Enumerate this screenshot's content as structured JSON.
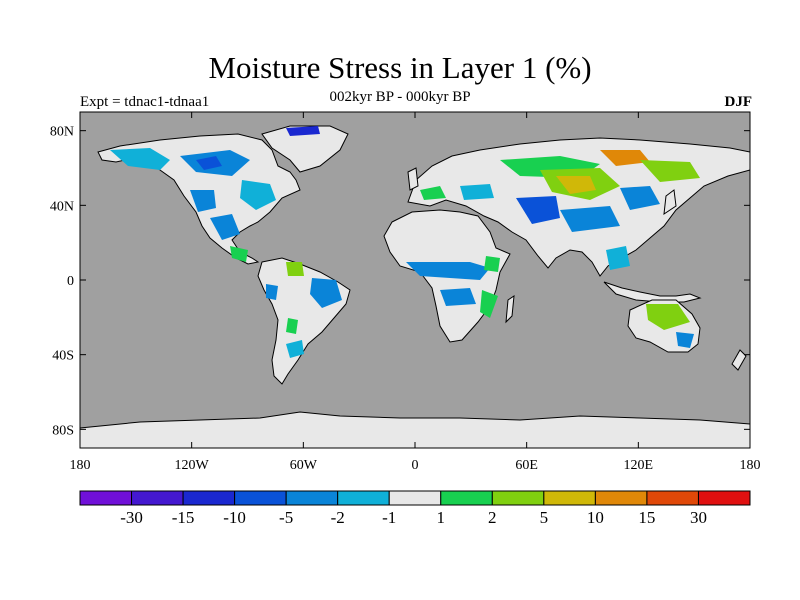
{
  "title": "Moisture Stress in Layer 1 (%)",
  "subtitle": "002kyr BP - 000kyr BP",
  "experiment": "Expt = tdnac1-tdnaa1",
  "season": "DJF",
  "map": {
    "projection": "equirectangular",
    "extent": {
      "lon": [
        -180,
        180
      ],
      "lat": [
        -90,
        90
      ]
    },
    "ocean_color": "#a0a0a0",
    "land_color": "#e8e8e8",
    "lat_ticks": [
      {
        "value": 80,
        "label": "80N"
      },
      {
        "value": 40,
        "label": "40N"
      },
      {
        "value": 0,
        "label": "0"
      },
      {
        "value": -40,
        "label": "40S"
      },
      {
        "value": -80,
        "label": "80S"
      }
    ],
    "lon_ticks": [
      {
        "value": -180,
        "label": "180"
      },
      {
        "value": -120,
        "label": "120W"
      },
      {
        "value": -60,
        "label": "60W"
      },
      {
        "value": 0,
        "label": "0"
      },
      {
        "value": 60,
        "label": "60E"
      },
      {
        "value": 120,
        "label": "120E"
      },
      {
        "value": 180,
        "label": "180"
      }
    ]
  },
  "colorbar": {
    "colors": [
      "#7010d8",
      "#4418d0",
      "#1a28d0",
      "#0a52d8",
      "#0a84d8",
      "#10b0d8",
      "#e8e8e8",
      "#18d050",
      "#80d010",
      "#d0b808",
      "#e08808",
      "#e04808",
      "#e01010"
    ],
    "labels": [
      "-30",
      "-15",
      "-10",
      "-5",
      "-2",
      "-1",
      "1",
      "2",
      "5",
      "10",
      "15",
      "30"
    ]
  }
}
